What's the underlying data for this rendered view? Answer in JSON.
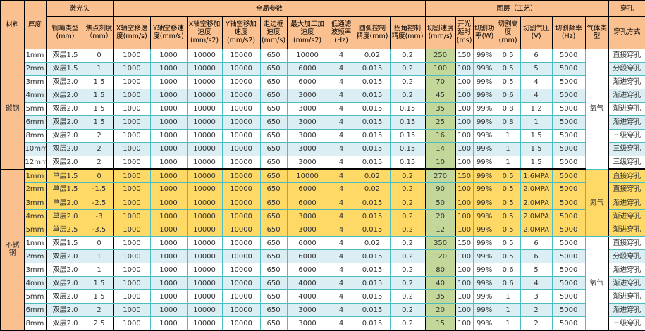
{
  "palette": {
    "header_bg": "#FAC090",
    "stripe_blue": "#DAEEF3",
    "stripe_white": "#FFFFFF",
    "section_yellow": "#FFD966",
    "speed_green": "#C4D79B",
    "grid_teal": "#4ABCC2",
    "grid_black": "#000000"
  },
  "header": {
    "material_label": "材料",
    "thickness_label": "厚度",
    "groups": [
      {
        "label": "激光头",
        "cols": 2
      },
      {
        "label": "全局参数",
        "cols": 9
      },
      {
        "label": "图层（工艺）",
        "cols": 7
      },
      {
        "label": "穿孔",
        "cols": 1
      }
    ],
    "columns": [
      "铜嘴类型(mm)",
      "焦点刻度（mm）",
      "X轴空移速度(mm/s)",
      "Y轴空移速度(mm/s)",
      "X轴空移加速度(mm/s2)",
      "Y轴空移加速度(mm/s2)",
      "走边框速度(mm/s)",
      "最大加工加速度(mm/s2)",
      "低通滤波频率(Hz)",
      "圆弧控制精度(mm)",
      "拐角控制精度(mm)",
      "切割速度(mm/s)",
      "开光延时(ms)",
      "切割功率(W)",
      "切割高度(mm)",
      "切割气压(V)",
      "切割频率(Hz)",
      "气体类型",
      "穿孔方式"
    ]
  },
  "materials": [
    {
      "name": "碳钢",
      "sections": [
        {
          "stripe": "blue-white",
          "gas": "氧气",
          "gas_style": "gas-white",
          "rows": [
            [
              "1mm",
              "双层1.5",
              "0",
              "1000",
              "1000",
              "10000",
              "10000",
              "650",
              "10000",
              "4",
              "0.02",
              "0.2",
              "250",
              "150",
              "99%",
              "0.5",
              "6",
              "5000",
              "直接穿孔"
            ],
            [
              "2mm",
              "双层1.5",
              "1",
              "1000",
              "1000",
              "10000",
              "10000",
              "650",
              "6000",
              "4",
              "0.015",
              "0.2",
              "100",
              "100",
              "99%",
              "0.5",
              "5",
              "5000",
              "分段穿孔"
            ],
            [
              "3mm",
              "双层2.0",
              "1.5",
              "1000",
              "1000",
              "10000",
              "10000",
              "650",
              "6000",
              "4",
              "0.015",
              "0.2",
              "70",
              "100",
              "99%",
              "0.5",
              "4",
              "5000",
              "渐进穿孔"
            ],
            [
              "4mm",
              "双层2.0",
              "1.5",
              "1000",
              "1000",
              "10000",
              "10000",
              "650",
              "3000",
              "4",
              "0.015",
              "0.2",
              "45",
              "100",
              "99%",
              "0.6",
              "4",
              "5000",
              "渐进穿孔"
            ],
            [
              "5mm",
              "双层2.0",
              "1.5",
              "1000",
              "1000",
              "10000",
              "10000",
              "650",
              "3000",
              "4",
              "0.015",
              "0.15",
              "35",
              "100",
              "99%",
              "0.8",
              "1.2",
              "5000",
              "渐进穿孔"
            ],
            [
              "6mm",
              "双层2.0",
              "1.5",
              "1000",
              "1000",
              "10000",
              "10000",
              "650",
              "3000",
              "4",
              "0.015",
              "0.15",
              "25",
              "100",
              "99%",
              "0.8",
              "1",
              "5000",
              "渐进穿孔"
            ],
            [
              "8mm",
              "双层2.0",
              "2",
              "1000",
              "1000",
              "10000",
              "10000",
              "650",
              "3000",
              "4",
              "0.015",
              "0.15",
              "16",
              "100",
              "99%",
              "1",
              "1.5",
              "5000",
              "三级穿孔"
            ],
            [
              "10mm",
              "双层2.0",
              "2",
              "1000",
              "1000",
              "10000",
              "10000",
              "650",
              "3000",
              "4",
              "0.015",
              "0.15",
              "14",
              "100",
              "99%",
              "1",
              "1.5",
              "5000",
              "三级穿孔"
            ],
            [
              "12mm",
              "双层2.0",
              "2",
              "1000",
              "1000",
              "10000",
              "10000",
              "650",
              "3000",
              "4",
              "0.015",
              "0.15",
              "10",
              "100",
              "99%",
              "1",
              "1.5",
              "5000",
              "三级穿孔"
            ]
          ]
        }
      ]
    },
    {
      "name": "不锈钢",
      "sections": [
        {
          "stripe": "yellow",
          "gas": "氮气",
          "gas_style": "gas-yellow",
          "rows": [
            [
              "1mm",
              "单层1.5",
              "0",
              "1000",
              "1000",
              "10000",
              "10000",
              "650",
              "10000",
              "4",
              "0.02",
              "0.2",
              "270",
              "150",
              "99%",
              "0.5",
              "1.6MPA",
              "5000",
              "直接穿孔"
            ],
            [
              "2mm",
              "单层1.5",
              "-1.5",
              "1000",
              "1000",
              "10000",
              "10000",
              "650",
              "6000",
              "4",
              "0.02",
              "0.2",
              "90",
              "100",
              "99%",
              "0.5",
              "2.0MPA",
              "5000",
              "直接穿孔"
            ],
            [
              "3mm",
              "单层2.0",
              "-2.5",
              "1000",
              "1000",
              "10000",
              "10000",
              "650",
              "6000",
              "4",
              "0.015",
              "0.2",
              "50",
              "100",
              "99%",
              "0.5",
              "2.0MPA",
              "5000",
              "渐进穿孔"
            ],
            [
              "4mm",
              "单层2.0",
              "-3",
              "1000",
              "1000",
              "10000",
              "10000",
              "650",
              "3000",
              "4",
              "0.015",
              "0.2",
              "20",
              "100",
              "99%",
              "0.5",
              "2.0MPA",
              "5000",
              "渐进穿孔"
            ],
            [
              "5mm",
              "单层2.5",
              "-3.5",
              "1000",
              "1000",
              "10000",
              "10000",
              "650",
              "3000",
              "4",
              "0.015",
              "0.2",
              "12",
              "100",
              "99%",
              "0.5",
              "2.0MPA",
              "5000",
              "渐进穿孔"
            ]
          ]
        },
        {
          "stripe": "blue-white",
          "gas": "氧气",
          "gas_style": "gas-white",
          "rows": [
            [
              "1mm",
              "双层1.5",
              "0",
              "1000",
              "1000",
              "10000",
              "10000",
              "650",
              "6000",
              "4",
              "0.02",
              "0.2",
              "350",
              "150",
              "99%",
              "0.5",
              "6",
              "5000",
              "直接穿孔"
            ],
            [
              "2mm",
              "双层2.0",
              "1",
              "1000",
              "1000",
              "10000",
              "10000",
              "650",
              "6000",
              "4",
              "0.015",
              "0.2",
              "120",
              "100",
              "99%",
              "0.5",
              "6",
              "5000",
              "分段穿孔"
            ],
            [
              "3mm",
              "双层2.0",
              "1",
              "1000",
              "1000",
              "10000",
              "10000",
              "650",
              "6000",
              "4",
              "0.015",
              "0.2",
              "80",
              "100",
              "99%",
              "0.6",
              "5",
              "5000",
              "渐进穿孔"
            ],
            [
              "4mm",
              "双层2.0",
              "1.5",
              "1000",
              "1000",
              "10000",
              "10000",
              "650",
              "4000",
              "4",
              "0.015",
              "0.2",
              "40",
              "100",
              "99%",
              "0.6",
              "4",
              "5000",
              "渐进穿孔"
            ],
            [
              "5mm",
              "双层2.0",
              "1.5",
              "1000",
              "1000",
              "10000",
              "10000",
              "650",
              "4000",
              "4",
              "0.015",
              "0.2",
              "35",
              "100",
              "99%",
              "1",
              "3",
              "5000",
              "渐进穿孔"
            ],
            [
              "6mm",
              "双层2.0",
              "2",
              "1000",
              "1000",
              "10000",
              "10000",
              "650",
              "3000",
              "4",
              "0.015",
              "0.2",
              "20",
              "100",
              "99%",
              "1",
              "2",
              "5000",
              "渐进穿孔"
            ],
            [
              "8mm",
              "双层2.0",
              "2.5",
              "1000",
              "1000",
              "10000",
              "10000",
              "650",
              "3000",
              "4",
              "0.015",
              "0.2",
              "15",
              "100",
              "99%",
              "1",
              "2",
              "5000",
              "三级穿孔"
            ]
          ]
        }
      ]
    }
  ]
}
